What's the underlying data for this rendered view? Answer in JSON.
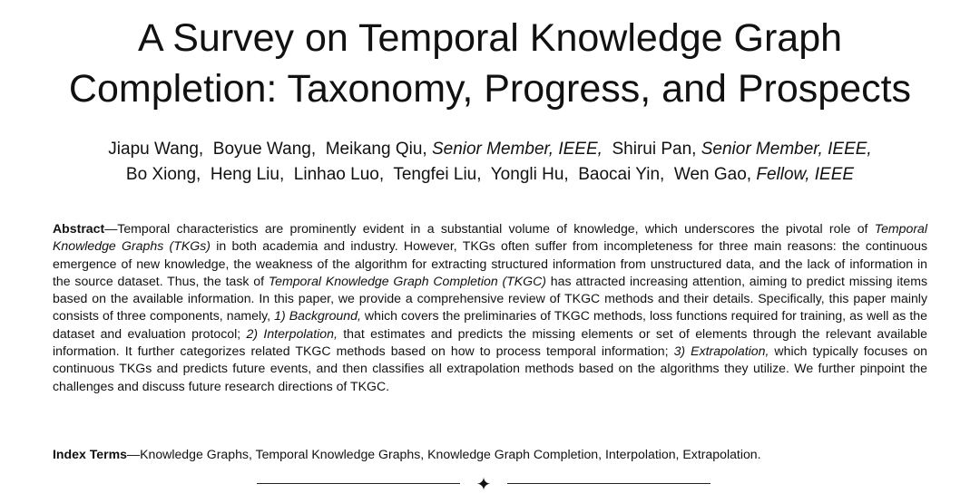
{
  "title": {
    "line1": "A Survey on Temporal Knowledge Graph",
    "line2": "Completion: Taxonomy, Progress, and Prospects"
  },
  "authors": {
    "line1": [
      {
        "name": "Jiapu Wang,"
      },
      {
        "name": "Boyue Wang,"
      },
      {
        "name": "Meikang Qiu,",
        "affil": "Senior Member, IEEE,"
      },
      {
        "name": "Shirui Pan,",
        "affil": "Senior Member, IEEE,"
      }
    ],
    "line2": [
      {
        "name": "Bo Xiong,"
      },
      {
        "name": "Heng Liu,"
      },
      {
        "name": "Linhao Luo,"
      },
      {
        "name": "Tengfei Liu,"
      },
      {
        "name": "Yongli Hu,"
      },
      {
        "name": "Baocai Yin,"
      },
      {
        "name": "Wen Gao,",
        "affil": "Fellow, IEEE"
      }
    ]
  },
  "abstract": {
    "label": "Abstract",
    "dash": "—",
    "segments": [
      {
        "t": "Temporal characteristics are prominently evident in a substantial volume of knowledge, which underscores the pivotal role of "
      },
      {
        "t": "Temporal Knowledge Graphs (TKGs)",
        "i": true
      },
      {
        "t": " in both academia and industry. However, TKGs often suffer from incompleteness for three main reasons: the continuous emergence of new knowledge, the weakness of the algorithm for extracting structured information from unstructured data, and the lack of information in the source dataset. Thus, the task of "
      },
      {
        "t": "Temporal Knowledge Graph Completion (TKGC)",
        "i": true
      },
      {
        "t": " has attracted increasing attention, aiming to predict missing items based on the available information. In this paper, we provide a comprehensive review of TKGC methods and their details. Specifically, this paper mainly consists of three components, namely, "
      },
      {
        "t": "1) Background,",
        "i": true
      },
      {
        "t": " which covers the preliminaries of TKGC methods, loss functions required for training, as well as the dataset and evaluation protocol; "
      },
      {
        "t": "2) Interpolation,",
        "i": true
      },
      {
        "t": " that estimates and predicts the missing elements or set of elements through the relevant available information. It further categorizes related TKGC methods based on how to process temporal information; "
      },
      {
        "t": "3) Extrapolation,",
        "i": true
      },
      {
        "t": " which typically focuses on continuous TKGs and predicts future events, and then classifies all extrapolation methods based on the algorithms they utilize. We further pinpoint the challenges and discuss future research directions of TKGC."
      }
    ]
  },
  "index_terms": {
    "label": "Index Terms",
    "dash": "—",
    "text": "Knowledge Graphs, Temporal Knowledge Graphs, Knowledge Graph Completion, Interpolation, Extrapolation."
  },
  "divider": {
    "symbol": "✦"
  }
}
